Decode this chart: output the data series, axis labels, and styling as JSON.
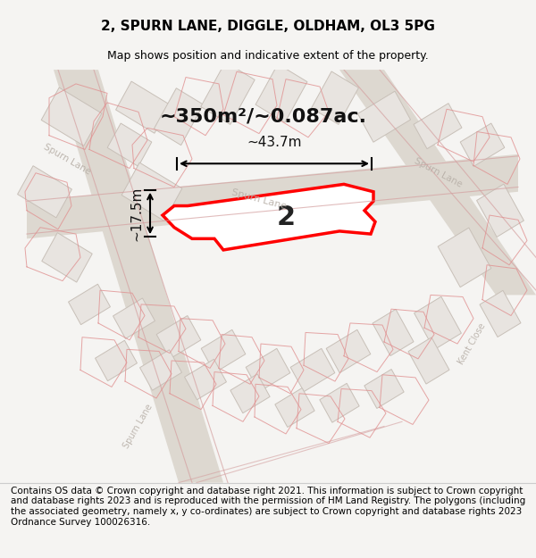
{
  "title": "2, SPURN LANE, DIGGLE, OLDHAM, OL3 5PG",
  "subtitle": "Map shows position and indicative extent of the property.",
  "footer": "Contains OS data © Crown copyright and database right 2021. This information is subject to Crown copyright and database rights 2023 and is reproduced with the permission of HM Land Registry. The polygons (including the associated geometry, namely x, y co-ordinates) are subject to Crown copyright and database rights 2023 Ordnance Survey 100026316.",
  "area_label": "~350m²/~0.087ac.",
  "width_label": "~43.7m",
  "height_label": "~17.5m",
  "property_number": "2",
  "bg_color": "#f5f4f2",
  "map_bg": "#f0ede8",
  "road_color": "#d8d0c8",
  "building_fill": "#e8e4e0",
  "building_stroke": "#c8c0b8",
  "property_fill": "#ffffff",
  "property_stroke": "#ff0000",
  "road_label_color": "#b0a898",
  "dim_color": "#000000",
  "title_fontsize": 11,
  "subtitle_fontsize": 9,
  "footer_fontsize": 7.5
}
